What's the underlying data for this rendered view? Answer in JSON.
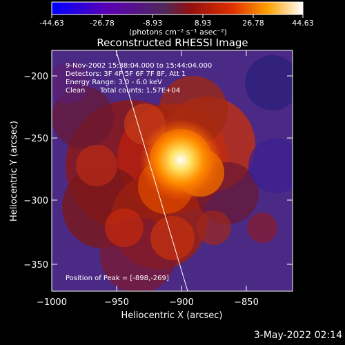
{
  "colorbar": {
    "ticks": [
      "-44.63",
      "-26.78",
      "-8.93",
      "8.93",
      "26.78",
      "44.63"
    ],
    "units": "(photons cm⁻² s⁻¹ asec⁻²)"
  },
  "plot": {
    "title": "Reconstructed RHESSI Image",
    "info": {
      "time": "9-Nov-2002 15:38:04.000 to 15:44:04.000",
      "detectors": "Detectors: 3F 4F 5F 6F 7F 8F, Att 1",
      "energy": "Energy Range: 3.0 - 6.0 keV",
      "algorithm": "Clean",
      "counts": "Total counts: 1.57E+04"
    },
    "peak": "Position of Peak = [-898,-269]",
    "xlabel": "Heliocentric X (arcsec)",
    "ylabel": "Heliocentric Y (arcsec)",
    "x_ticks": [
      "−1000",
      "−950",
      "−900",
      "−850"
    ],
    "y_ticks": [
      "−200",
      "−250",
      "−300",
      "−350"
    ]
  },
  "footer": {
    "date": "3-May-2022 02:14"
  },
  "colors": {
    "background": "#000000",
    "text": "#ffffff"
  }
}
